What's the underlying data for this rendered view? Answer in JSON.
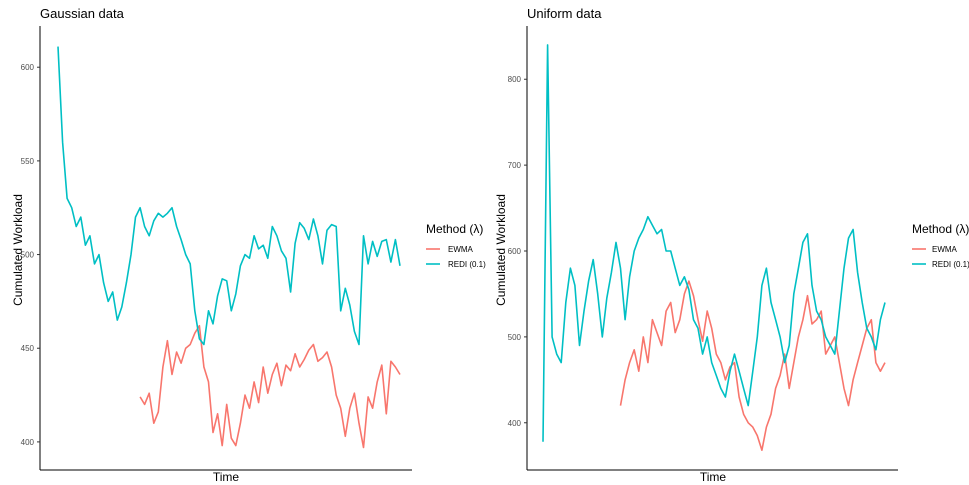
{
  "chart_data": [
    {
      "type": "line",
      "title": "Gaussian data",
      "xlabel": "Time",
      "ylabel": "Cumulated Workload",
      "ylim": [
        385,
        622
      ],
      "yticks": [
        400,
        450,
        500,
        550,
        600
      ],
      "grid": false,
      "legend": {
        "title": "Method (λ)",
        "placement": "right",
        "entries": [
          "EWMA",
          "REDI (0.1)"
        ]
      },
      "x": [
        0,
        2,
        4,
        6,
        8,
        10,
        12,
        14,
        16,
        18,
        20,
        22,
        24,
        26,
        28,
        30,
        32,
        34,
        36,
        38,
        40,
        42,
        44,
        46,
        48,
        50,
        52,
        54,
        56,
        58,
        60,
        62,
        64,
        66,
        68,
        70,
        72,
        74,
        76,
        78,
        80,
        82,
        84,
        86,
        88,
        90,
        92,
        94,
        96,
        98,
        100,
        102,
        104,
        106,
        108,
        110,
        112,
        114,
        116,
        118,
        120,
        122,
        124,
        126,
        128,
        130,
        132,
        134,
        136,
        138,
        140,
        142,
        144,
        146,
        148,
        150
      ],
      "series": [
        {
          "name": "EWMA",
          "color": "#F8766D",
          "values": [
            null,
            null,
            null,
            null,
            null,
            null,
            null,
            null,
            null,
            null,
            null,
            null,
            null,
            null,
            null,
            null,
            null,
            null,
            424,
            420,
            426,
            410,
            416,
            440,
            454,
            436,
            448,
            442,
            450,
            452,
            458,
            462,
            440,
            432,
            405,
            415,
            398,
            420,
            402,
            398,
            410,
            425,
            418,
            432,
            421,
            440,
            426,
            436,
            442,
            430,
            441,
            438,
            447,
            440,
            444,
            449,
            452,
            443,
            445,
            448,
            440,
            425,
            418,
            403,
            418,
            426,
            410,
            397,
            424,
            418,
            432,
            441,
            415,
            443,
            440,
            436
          ]
        },
        {
          "name": "REDI (0.1)",
          "color": "#00BFC4",
          "values": [
            611,
            560,
            530,
            525,
            515,
            520,
            505,
            510,
            495,
            500,
            485,
            475,
            480,
            465,
            472,
            485,
            500,
            520,
            525,
            515,
            510,
            518,
            522,
            520,
            522,
            525,
            515,
            508,
            500,
            495,
            470,
            455,
            452,
            470,
            463,
            478,
            487,
            486,
            470,
            479,
            494,
            500,
            498,
            510,
            503,
            505,
            498,
            515,
            510,
            502,
            498,
            480,
            506,
            517,
            514,
            508,
            519,
            510,
            495,
            513,
            516,
            515,
            470,
            482,
            473,
            459,
            452,
            510,
            495,
            507,
            499,
            507,
            508,
            496,
            508,
            494
          ]
        }
      ]
    },
    {
      "type": "line",
      "title": "Uniform data",
      "xlabel": "Time",
      "ylabel": "Cumulated Workload",
      "ylim": [
        345,
        862
      ],
      "yticks": [
        400,
        500,
        600,
        700,
        800
      ],
      "grid": false,
      "legend": {
        "title": "Method (λ)",
        "placement": "right",
        "entries": [
          "EWMA",
          "REDI (0.1)"
        ]
      },
      "x": [
        0,
        2,
        4,
        6,
        8,
        10,
        12,
        14,
        16,
        18,
        20,
        22,
        24,
        26,
        28,
        30,
        32,
        34,
        36,
        38,
        40,
        42,
        44,
        46,
        48,
        50,
        52,
        54,
        56,
        58,
        60,
        62,
        64,
        66,
        68,
        70,
        72,
        74,
        76,
        78,
        80,
        82,
        84,
        86,
        88,
        90,
        92,
        94,
        96,
        98,
        100,
        102,
        104,
        106,
        108,
        110,
        112,
        114,
        116,
        118,
        120,
        122,
        124,
        126,
        128,
        130,
        132,
        134,
        136,
        138,
        140,
        142,
        144,
        146,
        148,
        150
      ],
      "series": [
        {
          "name": "EWMA",
          "color": "#F8766D",
          "values": [
            null,
            null,
            null,
            null,
            null,
            null,
            null,
            null,
            null,
            null,
            null,
            null,
            null,
            null,
            null,
            null,
            null,
            420,
            450,
            470,
            485,
            460,
            500,
            470,
            520,
            505,
            490,
            530,
            540,
            505,
            520,
            550,
            565,
            548,
            520,
            495,
            530,
            510,
            480,
            470,
            450,
            465,
            470,
            430,
            410,
            400,
            395,
            385,
            368,
            395,
            410,
            440,
            455,
            480,
            440,
            470,
            500,
            520,
            548,
            515,
            520,
            530,
            480,
            490,
            500,
            470,
            440,
            420,
            450,
            470,
            490,
            510,
            520,
            470,
            460,
            470
          ]
        },
        {
          "name": "REDI (0.1)",
          "color": "#00BFC4",
          "values": [
            378,
            840,
            500,
            480,
            470,
            540,
            580,
            560,
            490,
            530,
            565,
            590,
            550,
            500,
            545,
            575,
            610,
            580,
            520,
            570,
            600,
            615,
            625,
            640,
            630,
            620,
            625,
            600,
            600,
            580,
            560,
            570,
            555,
            520,
            510,
            480,
            500,
            470,
            455,
            440,
            430,
            460,
            480,
            460,
            440,
            420,
            460,
            500,
            560,
            580,
            540,
            520,
            500,
            470,
            490,
            550,
            580,
            610,
            620,
            560,
            530,
            520,
            500,
            490,
            480,
            530,
            580,
            615,
            625,
            575,
            540,
            510,
            500,
            485,
            520,
            540
          ]
        }
      ]
    }
  ]
}
